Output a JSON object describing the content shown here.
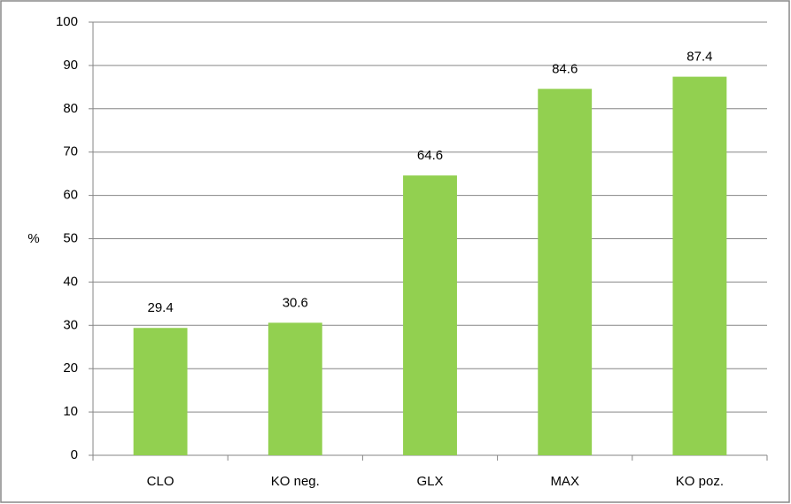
{
  "chart_data": {
    "type": "bar",
    "y_label": "%",
    "categories": [
      "CLO",
      "KO neg.",
      "GLX",
      "MAX",
      "KO poz."
    ],
    "values": [
      29.4,
      30.6,
      64.6,
      84.6,
      87.4
    ],
    "color": "#92d050",
    "ylim": [
      0,
      100
    ],
    "yticks": [
      0,
      10,
      20,
      30,
      40,
      50,
      60,
      70,
      80,
      90,
      100
    ],
    "grid": true
  }
}
